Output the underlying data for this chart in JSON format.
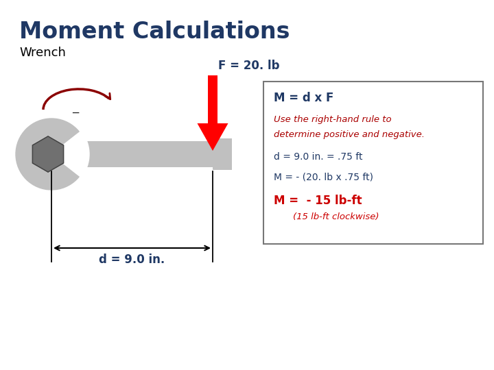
{
  "title": "Moment Calculations",
  "subtitle": "Wrench",
  "bg_color": "#ffffff",
  "title_color": "#1F3864",
  "subtitle_color": "#000000",
  "force_label": "F = 20. lb",
  "force_label_color": "#1F3864",
  "distance_label": "d = 9.0 in.",
  "distance_label_color": "#1F3864",
  "wrench_color": "#c0c0c0",
  "bolt_color": "#707070",
  "force_arrow_color": "#ff0000",
  "moment_arc_color": "#8B0000",
  "box_line_color": "#777777",
  "line1": "M = d x F",
  "line1_color": "#1F3864",
  "line2a": "Use the right-hand rule to",
  "line2b": "determine positive and negative.",
  "line2_color": "#aa0000",
  "line3": "d = 9.0 in. = .75 ft",
  "line3_color": "#1F3864",
  "line4": "M = - (20. lb x .75 ft)",
  "line4_color": "#1F3864",
  "line5": "M =  - 15 lb-ft",
  "line5_color": "#cc0000",
  "line6": "(15 lb-ft clockwise)",
  "line6_color": "#cc0000"
}
